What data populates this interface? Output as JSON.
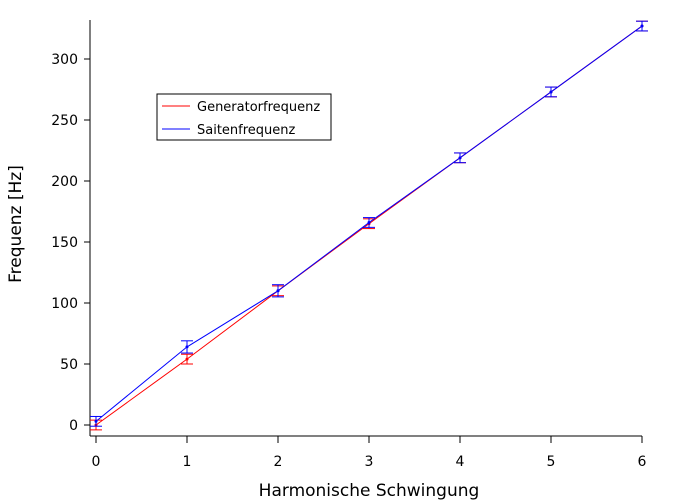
{
  "chart_data": {
    "type": "line",
    "title": "",
    "xlabel": "Harmonische Schwingung",
    "ylabel": "Frequenz [Hz]",
    "xlim": [
      -0.1,
      6.1
    ],
    "ylim": [
      -8,
      330
    ],
    "xticks": [
      0,
      1,
      2,
      3,
      4,
      5,
      6
    ],
    "yticks": [
      0,
      50,
      100,
      150,
      200,
      250,
      300
    ],
    "grid": false,
    "legend_position": "upper-left",
    "series": [
      {
        "name": "Generatorfrequenz",
        "color": "#ff0000",
        "x": [
          0,
          1,
          2,
          3,
          4,
          5,
          6
        ],
        "y": [
          0,
          54,
          110,
          165,
          219,
          273,
          327
        ],
        "error": [
          4,
          4,
          4,
          4,
          4,
          4,
          4
        ]
      },
      {
        "name": "Saitenfrequenz",
        "color": "#0000ff",
        "x": [
          0,
          1,
          2,
          3,
          4,
          5,
          6
        ],
        "y": [
          3,
          64,
          110,
          166,
          219,
          273,
          327
        ],
        "error": [
          4,
          5,
          5,
          4,
          4,
          4,
          4
        ]
      }
    ]
  }
}
